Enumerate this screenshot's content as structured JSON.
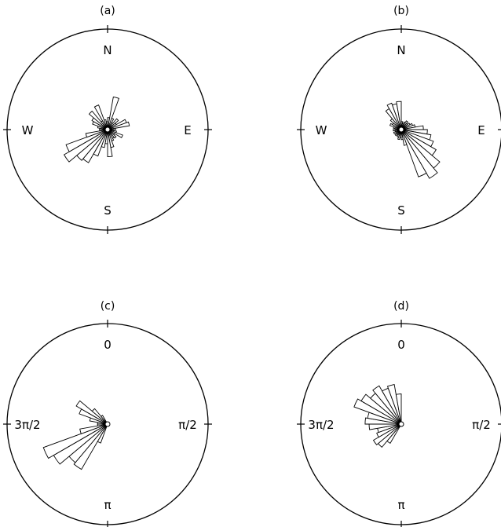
{
  "chart_data": [
    {
      "type": "rose",
      "panel_label": "(a)",
      "direction_labels": {
        "top": "N",
        "right": "E",
        "bottom": "S",
        "left": "W"
      },
      "radial_range": [
        0,
        100
      ],
      "bin_width_deg": 10,
      "bins": [
        {
          "angle_deg": 5,
          "value": 12
        },
        {
          "angle_deg": 15,
          "value": 33
        },
        {
          "angle_deg": 25,
          "value": 12
        },
        {
          "angle_deg": 35,
          "value": 8
        },
        {
          "angle_deg": 45,
          "value": 14
        },
        {
          "angle_deg": 55,
          "value": 10
        },
        {
          "angle_deg": 65,
          "value": 20
        },
        {
          "angle_deg": 75,
          "value": 22
        },
        {
          "angle_deg": 85,
          "value": 8
        },
        {
          "angle_deg": 95,
          "value": 6
        },
        {
          "angle_deg": 105,
          "value": 9
        },
        {
          "angle_deg": 115,
          "value": 16
        },
        {
          "angle_deg": 125,
          "value": 8
        },
        {
          "angle_deg": 135,
          "value": 11
        },
        {
          "angle_deg": 145,
          "value": 10
        },
        {
          "angle_deg": 155,
          "value": 12
        },
        {
          "angle_deg": 165,
          "value": 18
        },
        {
          "angle_deg": 175,
          "value": 27
        },
        {
          "angle_deg": 185,
          "value": 14
        },
        {
          "angle_deg": 195,
          "value": 18
        },
        {
          "angle_deg": 205,
          "value": 28
        },
        {
          "angle_deg": 215,
          "value": 38
        },
        {
          "angle_deg": 225,
          "value": 40
        },
        {
          "angle_deg": 235,
          "value": 50
        },
        {
          "angle_deg": 245,
          "value": 44
        },
        {
          "angle_deg": 255,
          "value": 22
        },
        {
          "angle_deg": 265,
          "value": 8
        },
        {
          "angle_deg": 275,
          "value": 8
        },
        {
          "angle_deg": 285,
          "value": 10
        },
        {
          "angle_deg": 295,
          "value": 16
        },
        {
          "angle_deg": 305,
          "value": 18
        },
        {
          "angle_deg": 315,
          "value": 24
        },
        {
          "angle_deg": 325,
          "value": 10
        },
        {
          "angle_deg": 335,
          "value": 26
        },
        {
          "angle_deg": 345,
          "value": 10
        },
        {
          "angle_deg": 355,
          "value": 8
        }
      ]
    },
    {
      "type": "rose",
      "panel_label": "(b)",
      "direction_labels": {
        "top": "N",
        "right": "E",
        "bottom": "S",
        "left": "W"
      },
      "radial_range": [
        0,
        100
      ],
      "bin_width_deg": 10,
      "bins": [
        {
          "angle_deg": 5,
          "value": 8
        },
        {
          "angle_deg": 15,
          "value": 6
        },
        {
          "angle_deg": 25,
          "value": 8
        },
        {
          "angle_deg": 35,
          "value": 10
        },
        {
          "angle_deg": 45,
          "value": 8
        },
        {
          "angle_deg": 55,
          "value": 10
        },
        {
          "angle_deg": 65,
          "value": 12
        },
        {
          "angle_deg": 75,
          "value": 14
        },
        {
          "angle_deg": 85,
          "value": 22
        },
        {
          "angle_deg": 95,
          "value": 26
        },
        {
          "angle_deg": 105,
          "value": 30
        },
        {
          "angle_deg": 115,
          "value": 34
        },
        {
          "angle_deg": 125,
          "value": 40
        },
        {
          "angle_deg": 135,
          "value": 50
        },
        {
          "angle_deg": 145,
          "value": 56
        },
        {
          "angle_deg": 155,
          "value": 50
        },
        {
          "angle_deg": 165,
          "value": 16
        },
        {
          "angle_deg": 175,
          "value": 10
        },
        {
          "angle_deg": 185,
          "value": 8
        },
        {
          "angle_deg": 195,
          "value": 10
        },
        {
          "angle_deg": 205,
          "value": 8
        },
        {
          "angle_deg": 215,
          "value": 6
        },
        {
          "angle_deg": 225,
          "value": 8
        },
        {
          "angle_deg": 235,
          "value": 6
        },
        {
          "angle_deg": 245,
          "value": 8
        },
        {
          "angle_deg": 255,
          "value": 6
        },
        {
          "angle_deg": 265,
          "value": 8
        },
        {
          "angle_deg": 275,
          "value": 6
        },
        {
          "angle_deg": 285,
          "value": 8
        },
        {
          "angle_deg": 295,
          "value": 12
        },
        {
          "angle_deg": 305,
          "value": 10
        },
        {
          "angle_deg": 315,
          "value": 14
        },
        {
          "angle_deg": 325,
          "value": 24
        },
        {
          "angle_deg": 335,
          "value": 28
        },
        {
          "angle_deg": 345,
          "value": 26
        },
        {
          "angle_deg": 355,
          "value": 28
        }
      ]
    },
    {
      "type": "rose",
      "panel_label": "(c)",
      "direction_labels": {
        "top": "0",
        "right": "π/2",
        "bottom": "π",
        "left": "3π/2"
      },
      "radial_range": [
        0,
        100
      ],
      "bin_width_deg": 10,
      "bins": [
        {
          "angle_deg": 205,
          "value": 20
        },
        {
          "angle_deg": 215,
          "value": 52
        },
        {
          "angle_deg": 225,
          "value": 50
        },
        {
          "angle_deg": 235,
          "value": 62
        },
        {
          "angle_deg": 245,
          "value": 68
        },
        {
          "angle_deg": 255,
          "value": 28
        },
        {
          "angle_deg": 265,
          "value": 10
        },
        {
          "angle_deg": 275,
          "value": 10
        },
        {
          "angle_deg": 285,
          "value": 18
        },
        {
          "angle_deg": 295,
          "value": 30
        },
        {
          "angle_deg": 305,
          "value": 36
        },
        {
          "angle_deg": 315,
          "value": 20
        },
        {
          "angle_deg": 325,
          "value": 10
        }
      ]
    },
    {
      "type": "rose",
      "panel_label": "(d)",
      "direction_labels": {
        "top": "0",
        "right": "π/2",
        "bottom": "π",
        "left": "3π/2"
      },
      "radial_range": [
        0,
        100
      ],
      "bin_width_deg": 10,
      "bins": [
        {
          "angle_deg": 215,
          "value": 22
        },
        {
          "angle_deg": 225,
          "value": 30
        },
        {
          "angle_deg": 235,
          "value": 32
        },
        {
          "angle_deg": 245,
          "value": 26
        },
        {
          "angle_deg": 255,
          "value": 24
        },
        {
          "angle_deg": 265,
          "value": 32
        },
        {
          "angle_deg": 275,
          "value": 36
        },
        {
          "angle_deg": 285,
          "value": 34
        },
        {
          "angle_deg": 295,
          "value": 50
        },
        {
          "angle_deg": 305,
          "value": 46
        },
        {
          "angle_deg": 315,
          "value": 40
        },
        {
          "angle_deg": 325,
          "value": 44
        },
        {
          "angle_deg": 335,
          "value": 38
        },
        {
          "angle_deg": 345,
          "value": 40
        },
        {
          "angle_deg": 355,
          "value": 30
        }
      ]
    }
  ]
}
